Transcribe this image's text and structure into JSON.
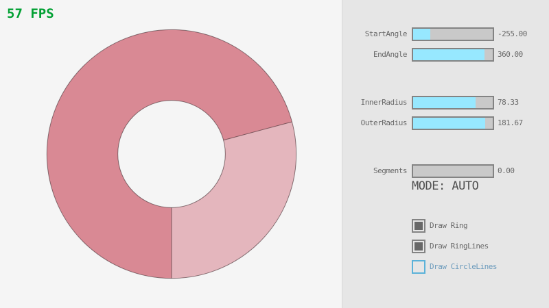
{
  "fps": {
    "label": "57 FPS",
    "color": "#00A032"
  },
  "ring": {
    "color_dark": "#D98994",
    "color_light": "#E4B6BD",
    "outline_color": "rgba(30,15,20,0.5)"
  },
  "panel": {
    "sliders": [
      {
        "label": "StartAngle",
        "value": "-255.00",
        "fill_pct": 21.7
      },
      {
        "label": "EndAngle",
        "value": "360.00",
        "fill_pct": 90.0
      },
      {
        "label": "InnerRadius",
        "value": "78.33",
        "fill_pct": 78.3
      },
      {
        "label": "OuterRadius",
        "value": "181.67",
        "fill_pct": 90.8
      },
      {
        "label": "Segments",
        "value": "0.00",
        "fill_pct": 0
      }
    ],
    "mode_text": "MODE: AUTO",
    "checkboxes": [
      {
        "label": "Draw Ring",
        "checked": true,
        "focused": false
      },
      {
        "label": "Draw RingLines",
        "checked": true,
        "focused": false
      },
      {
        "label": "Draw CircleLines",
        "checked": false,
        "focused": true
      }
    ],
    "colors": {
      "slider_fill": "#97E8FF",
      "slider_track": "#C9C9C9",
      "border": "#838383",
      "text": "#686868",
      "focused_border": "#5BB2D9",
      "focused_text": "#6C9BBC",
      "panel_bg": "#E6E6E6"
    }
  }
}
